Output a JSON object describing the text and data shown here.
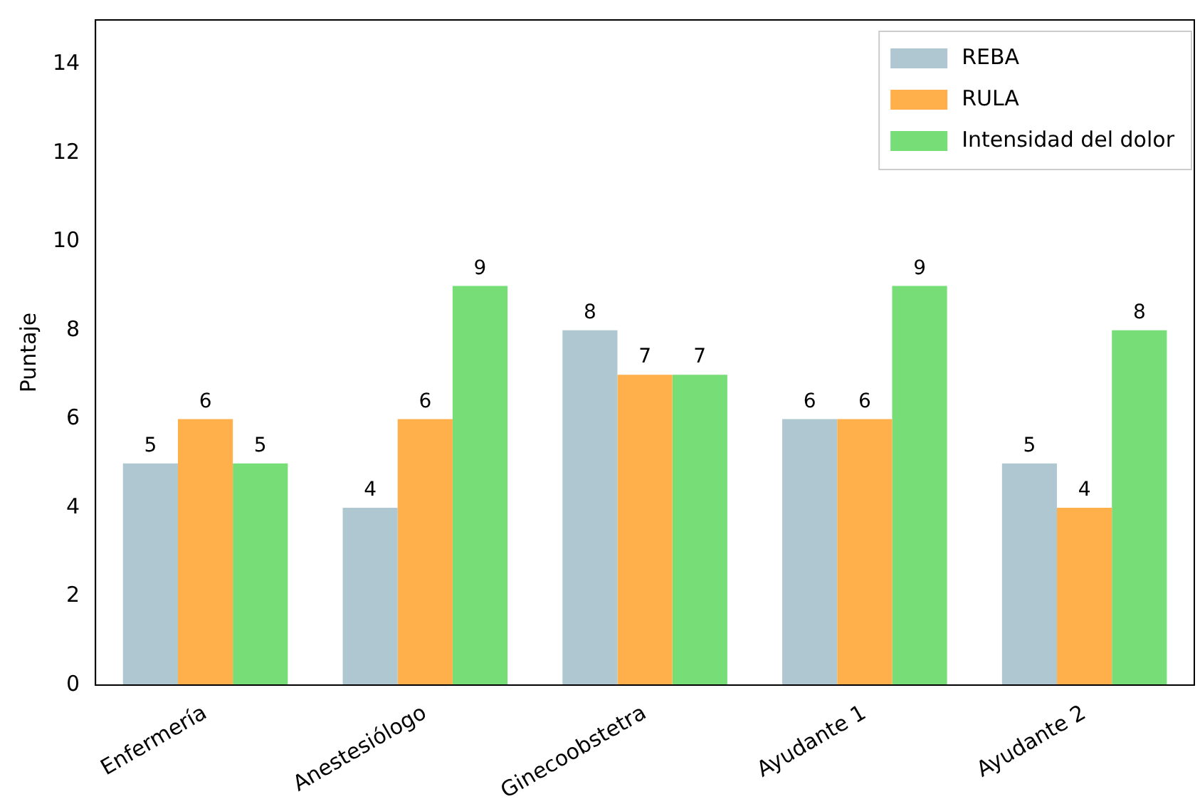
{
  "chart_data": {
    "type": "bar",
    "ylabel": "Puntaje",
    "categories": [
      "Enfermería",
      "Anestesiólogo",
      "Ginecoobstetra",
      "Ayudante 1",
      "Ayudante 2"
    ],
    "series": [
      {
        "name": "REBA",
        "color": "#aec7d0",
        "values": [
          5,
          4,
          8,
          6,
          5
        ]
      },
      {
        "name": "RULA",
        "color": "#ffb04a",
        "values": [
          6,
          6,
          7,
          6,
          4
        ]
      },
      {
        "name": "Intensidad del dolor",
        "color": "#77dd77",
        "values": [
          5,
          9,
          7,
          9,
          8
        ]
      }
    ],
    "ylim": [
      0,
      15
    ],
    "yticks": [
      0,
      2,
      4,
      6,
      8,
      10,
      12,
      14
    ],
    "grid": false,
    "legend": "top right",
    "data_labels": true
  }
}
